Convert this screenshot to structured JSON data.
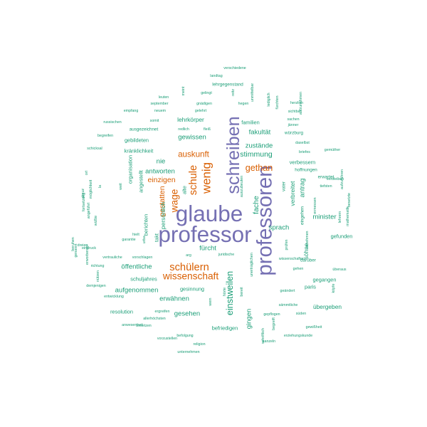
{
  "palette": {
    "purple": "#7570b3",
    "orange": "#d95f02",
    "teal": "#1b9e77"
  },
  "words": [
    {
      "text": "verschiedene",
      "size": 5,
      "color": "teal",
      "vertical": false
    },
    {
      "text": "landtag",
      "size": 5,
      "color": "teal",
      "vertical": false
    },
    {
      "text": "lehrgegenstand",
      "size": 6,
      "color": "teal",
      "vertical": false
    },
    {
      "text": "gelingt",
      "size": 5,
      "color": "teal",
      "vertical": false
    },
    {
      "text": "leuten",
      "size": 5,
      "color": "teal",
      "vertical": false
    },
    {
      "text": "september",
      "size": 5,
      "color": "teal",
      "vertical": false
    },
    {
      "text": "gnädigen",
      "size": 5,
      "color": "teal",
      "vertical": false
    },
    {
      "text": "empfang",
      "size": 5,
      "color": "teal",
      "vertical": false
    },
    {
      "text": "neuem",
      "size": 5,
      "color": "teal",
      "vertical": false
    },
    {
      "text": "gelehrt",
      "size": 5,
      "color": "teal",
      "vertical": false
    },
    {
      "text": "russischen",
      "size": 5,
      "color": "teal",
      "vertical": false
    },
    {
      "text": "somit",
      "size": 5,
      "color": "teal",
      "vertical": false
    },
    {
      "text": "lehrkörper",
      "size": 8,
      "color": "teal",
      "vertical": false
    },
    {
      "text": "ausgezeichnet",
      "size": 6,
      "color": "teal",
      "vertical": false
    },
    {
      "text": "redlich",
      "size": 5,
      "color": "teal",
      "vertical": false
    },
    {
      "text": "fleiß",
      "size": 5,
      "color": "teal",
      "vertical": false
    },
    {
      "text": "begreifen",
      "size": 5,
      "color": "teal",
      "vertical": false
    },
    {
      "text": "gewissen",
      "size": 9,
      "color": "teal",
      "vertical": false
    },
    {
      "text": "gebildeten",
      "size": 7,
      "color": "teal",
      "vertical": false
    },
    {
      "text": "schicksal",
      "size": 5,
      "color": "teal",
      "vertical": false
    },
    {
      "text": "kränklichkeit",
      "size": 7,
      "color": "teal",
      "vertical": false
    },
    {
      "text": "auskunft",
      "size": 11,
      "color": "orange",
      "vertical": false
    },
    {
      "text": "nie",
      "size": 9,
      "color": "teal",
      "vertical": false
    },
    {
      "text": "antworten",
      "size": 9,
      "color": "teal",
      "vertical": false
    },
    {
      "text": "einzigen",
      "size": 10,
      "color": "orange",
      "vertical": false
    },
    {
      "text": "schreiben",
      "size": 24,
      "color": "purple",
      "vertical": true
    },
    {
      "text": "wenig",
      "size": 16,
      "color": "orange",
      "vertical": true
    },
    {
      "text": "schule",
      "size": 14,
      "color": "orange",
      "vertical": true
    },
    {
      "text": "wage",
      "size": 13,
      "color": "orange",
      "vertical": true
    },
    {
      "text": "glaube",
      "size": 30,
      "color": "purple",
      "vertical": false
    },
    {
      "text": "professor",
      "size": 30,
      "color": "purple",
      "vertical": false
    },
    {
      "text": "professoren",
      "size": 28,
      "color": "purple",
      "vertical": true
    },
    {
      "text": "hegen",
      "size": 5,
      "color": "teal",
      "vertical": false
    },
    {
      "text": "reitz",
      "size": 5,
      "color": "teal",
      "vertical": true
    },
    {
      "text": "unmittelbar",
      "size": 5,
      "color": "teal",
      "vertical": true
    },
    {
      "text": "lediglich",
      "size": 5,
      "color": "teal",
      "vertical": true
    },
    {
      "text": "fürchten",
      "size": 5,
      "color": "teal",
      "vertical": true
    },
    {
      "text": "herzlich",
      "size": 5,
      "color": "teal",
      "vertical": false
    },
    {
      "text": "aufzunehmen",
      "size": 5,
      "color": "teal",
      "vertical": true
    },
    {
      "text": "sichtbar",
      "size": 5,
      "color": "teal",
      "vertical": false
    },
    {
      "text": "sachen",
      "size": 5,
      "color": "teal",
      "vertical": false
    },
    {
      "text": "jänner",
      "size": 5,
      "color": "teal",
      "vertical": false
    },
    {
      "text": "familien",
      "size": 7,
      "color": "teal",
      "vertical": false
    },
    {
      "text": "fakultät",
      "size": 9,
      "color": "teal",
      "vertical": false
    },
    {
      "text": "würzburg",
      "size": 6,
      "color": "teal",
      "vertical": false
    },
    {
      "text": "daselbst",
      "size": 5,
      "color": "teal",
      "vertical": false
    },
    {
      "text": "gemüther",
      "size": 5,
      "color": "teal",
      "vertical": false
    },
    {
      "text": "zustände",
      "size": 9,
      "color": "teal",
      "vertical": false
    },
    {
      "text": "briefes",
      "size": 5,
      "color": "teal",
      "vertical": false
    },
    {
      "text": "stimmung",
      "size": 10,
      "color": "teal",
      "vertical": false
    },
    {
      "text": "verbessern",
      "size": 7,
      "color": "teal",
      "vertical": false
    },
    {
      "text": "gethan",
      "size": 12,
      "color": "orange",
      "vertical": false
    },
    {
      "text": "hoffnungen",
      "size": 6,
      "color": "teal",
      "vertical": false
    },
    {
      "text": "erwartet",
      "size": 6,
      "color": "teal",
      "vertical": false
    },
    {
      "text": "tiefsten",
      "size": 5,
      "color": "teal",
      "vertical": false
    },
    {
      "text": "verbleiben",
      "size": 5,
      "color": "teal",
      "vertical": false
    },
    {
      "text": "aufzuführen",
      "size": 5,
      "color": "teal",
      "vertical": true
    },
    {
      "text": "besetzte",
      "size": 5,
      "color": "teal",
      "vertical": true
    },
    {
      "text": "auszubeuten",
      "size": 5,
      "color": "teal",
      "vertical": true
    },
    {
      "text": "fache",
      "size": 10,
      "color": "teal",
      "vertical": true
    },
    {
      "text": "vater",
      "size": 6,
      "color": "teal",
      "vertical": true
    },
    {
      "text": "verbreitet",
      "size": 8,
      "color": "teal",
      "vertical": true
    },
    {
      "text": "antrag",
      "size": 9,
      "color": "teal",
      "vertical": true
    },
    {
      "text": "eingehen",
      "size": 6,
      "color": "teal",
      "vertical": true
    },
    {
      "text": "sprach",
      "size": 9,
      "color": "teal",
      "vertical": false
    },
    {
      "text": "minister",
      "size": 9,
      "color": "teal",
      "vertical": false
    },
    {
      "text": "lehrern",
      "size": 5,
      "color": "teal",
      "vertical": true
    },
    {
      "text": "mathematik",
      "size": 5,
      "color": "teal",
      "vertical": true
    },
    {
      "text": "annehmen",
      "size": 5,
      "color": "teal",
      "vertical": true
    },
    {
      "text": "gefunden",
      "size": 7,
      "color": "teal",
      "vertical": false
    },
    {
      "text": "prüfen",
      "size": 5,
      "color": "teal",
      "vertical": true
    },
    {
      "text": "söhne",
      "size": 8,
      "color": "teal",
      "vertical": true
    },
    {
      "text": "darüber",
      "size": 6,
      "color": "teal",
      "vertical": false
    },
    {
      "text": "wissenschaften",
      "size": 5,
      "color": "teal",
      "vertical": false
    },
    {
      "text": "gehen",
      "size": 5,
      "color": "teal",
      "vertical": false
    },
    {
      "text": "gegangen",
      "size": 7,
      "color": "teal",
      "vertical": false
    },
    {
      "text": "überaus",
      "size": 5,
      "color": "teal",
      "vertical": false
    },
    {
      "text": "geändert",
      "size": 5,
      "color": "teal",
      "vertical": false
    },
    {
      "text": "paris",
      "size": 7,
      "color": "teal",
      "vertical": false
    },
    {
      "text": "köpfe",
      "size": 5,
      "color": "teal",
      "vertical": true
    },
    {
      "text": "sämmtliche",
      "size": 5,
      "color": "teal",
      "vertical": false
    },
    {
      "text": "übergeben",
      "size": 8,
      "color": "teal",
      "vertical": false
    },
    {
      "text": "gepflogen",
      "size": 5,
      "color": "teal",
      "vertical": false
    },
    {
      "text": "süden",
      "size": 5,
      "color": "teal",
      "vertical": false
    },
    {
      "text": "gewißheit",
      "size": 5,
      "color": "teal",
      "vertical": false
    },
    {
      "text": "erziehungskunde",
      "size": 5,
      "color": "teal",
      "vertical": false
    },
    {
      "text": "kanzeln",
      "size": 5,
      "color": "teal",
      "vertical": false
    },
    {
      "text": "begreift",
      "size": 5,
      "color": "teal",
      "vertical": true
    },
    {
      "text": "schriftlich",
      "size": 5,
      "color": "teal",
      "vertical": true
    },
    {
      "text": "unerträglichen",
      "size": 5,
      "color": "teal",
      "vertical": true
    },
    {
      "text": "gingen",
      "size": 9,
      "color": "teal",
      "vertical": true
    },
    {
      "text": "bereit",
      "size": 5,
      "color": "teal",
      "vertical": true
    },
    {
      "text": "einstweilen",
      "size": 12,
      "color": "teal",
      "vertical": true
    },
    {
      "text": "hörte",
      "size": 5,
      "color": "teal",
      "vertical": true
    },
    {
      "text": "wem",
      "size": 5,
      "color": "teal",
      "vertical": true
    },
    {
      "text": "gesehen",
      "size": 9,
      "color": "teal",
      "vertical": false
    },
    {
      "text": "befriedigen",
      "size": 7,
      "color": "teal",
      "vertical": false
    },
    {
      "text": "juridische",
      "size": 5,
      "color": "teal",
      "vertical": false
    },
    {
      "text": "fürcht",
      "size": 9,
      "color": "teal",
      "vertical": false
    },
    {
      "text": "arg",
      "size": 5,
      "color": "teal",
      "vertical": false
    },
    {
      "text": "schülern",
      "size": 14,
      "color": "orange",
      "vertical": false
    },
    {
      "text": "wissenschaft",
      "size": 13,
      "color": "orange",
      "vertical": false
    },
    {
      "text": "öffentliche",
      "size": 9,
      "color": "teal",
      "vertical": false
    },
    {
      "text": "schuljahres",
      "size": 7,
      "color": "teal",
      "vertical": false
    },
    {
      "text": "gesinnung",
      "size": 7,
      "color": "teal",
      "vertical": false
    },
    {
      "text": "erwähnen",
      "size": 9,
      "color": "teal",
      "vertical": false
    },
    {
      "text": "aufgenommen",
      "size": 9,
      "color": "teal",
      "vertical": false
    },
    {
      "text": "ergreifen",
      "size": 5,
      "color": "teal",
      "vertical": false
    },
    {
      "text": "resolution",
      "size": 7,
      "color": "teal",
      "vertical": false
    },
    {
      "text": "besetzen",
      "size": 5,
      "color": "teal",
      "vertical": false
    },
    {
      "text": "anwesenheit",
      "size": 5,
      "color": "teal",
      "vertical": false
    },
    {
      "text": "allerhöchsten",
      "size": 5,
      "color": "teal",
      "vertical": false
    },
    {
      "text": "vorzustellen",
      "size": 5,
      "color": "teal",
      "vertical": false
    },
    {
      "text": "befolgung",
      "size": 5,
      "color": "teal",
      "vertical": false
    },
    {
      "text": "religion",
      "size": 5,
      "color": "teal",
      "vertical": false
    },
    {
      "text": "unternehmen",
      "size": 5,
      "color": "teal",
      "vertical": false
    },
    {
      "text": "entwicklung",
      "size": 5,
      "color": "teal",
      "vertical": false
    },
    {
      "text": "demjenigen",
      "size": 5,
      "color": "teal",
      "vertical": false
    },
    {
      "text": "nützen",
      "size": 5,
      "color": "teal",
      "vertical": true
    },
    {
      "text": "richtung",
      "size": 5,
      "color": "teal",
      "vertical": false
    },
    {
      "text": "vertrauliche",
      "size": 5,
      "color": "teal",
      "vertical": false
    },
    {
      "text": "vorschlagen",
      "size": 5,
      "color": "teal",
      "vertical": false
    },
    {
      "text": "garantie",
      "size": 5,
      "color": "teal",
      "vertical": false
    },
    {
      "text": "hielt",
      "size": 5,
      "color": "teal",
      "vertical": false
    },
    {
      "text": "berichten",
      "size": 7,
      "color": "teal",
      "vertical": true
    },
    {
      "text": "angestellt",
      "size": 7,
      "color": "teal",
      "vertical": true
    },
    {
      "text": "gestatten",
      "size": 10,
      "color": "orange",
      "vertical": true
    },
    {
      "text": "persönlich",
      "size": 8,
      "color": "teal",
      "vertical": true
    },
    {
      "text": "takt",
      "size": 7,
      "color": "teal",
      "vertical": true
    },
    {
      "text": "alte",
      "size": 7,
      "color": "teal",
      "vertical": true
    },
    {
      "text": "urba",
      "size": 5,
      "color": "teal",
      "vertical": true
    },
    {
      "text": "la",
      "size": 5,
      "color": "teal",
      "vertical": true
    },
    {
      "text": "weit",
      "size": 5,
      "color": "teal",
      "vertical": true
    },
    {
      "text": "organisation",
      "size": 7,
      "color": "teal",
      "vertical": true
    },
    {
      "text": "almuz",
      "size": 5,
      "color": "teal",
      "vertical": true
    },
    {
      "text": "möglichkeit",
      "size": 5,
      "color": "teal",
      "vertical": true
    },
    {
      "text": "ort",
      "size": 5,
      "color": "teal",
      "vertical": true
    },
    {
      "text": "fortsetzung",
      "size": 5,
      "color": "teal",
      "vertical": true
    },
    {
      "text": "angeführt",
      "size": 5,
      "color": "teal",
      "vertical": true
    },
    {
      "text": "wüßte",
      "size": 5,
      "color": "teal",
      "vertical": true
    },
    {
      "text": "dreien",
      "size": 5,
      "color": "teal",
      "vertical": false
    },
    {
      "text": "eindruck",
      "size": 5,
      "color": "teal",
      "vertical": false
    },
    {
      "text": "genannt",
      "size": 5,
      "color": "teal",
      "vertical": true
    },
    {
      "text": "erworbenen",
      "size": 5,
      "color": "teal",
      "vertical": true
    },
    {
      "text": "beruhen",
      "size": 5,
      "color": "teal",
      "vertical": true
    },
    {
      "text": "meint",
      "size": 5,
      "color": "teal",
      "vertical": true
    },
    {
      "text": "ermessen",
      "size": 5,
      "color": "teal",
      "vertical": true
    },
    {
      "text": "gewöhnlich",
      "size": 5,
      "color": "teal",
      "vertical": true
    },
    {
      "text": "größeren",
      "size": 5,
      "color": "teal",
      "vertical": true
    },
    {
      "text": "familie",
      "size": 5,
      "color": "teal",
      "vertical": false
    }
  ]
}
